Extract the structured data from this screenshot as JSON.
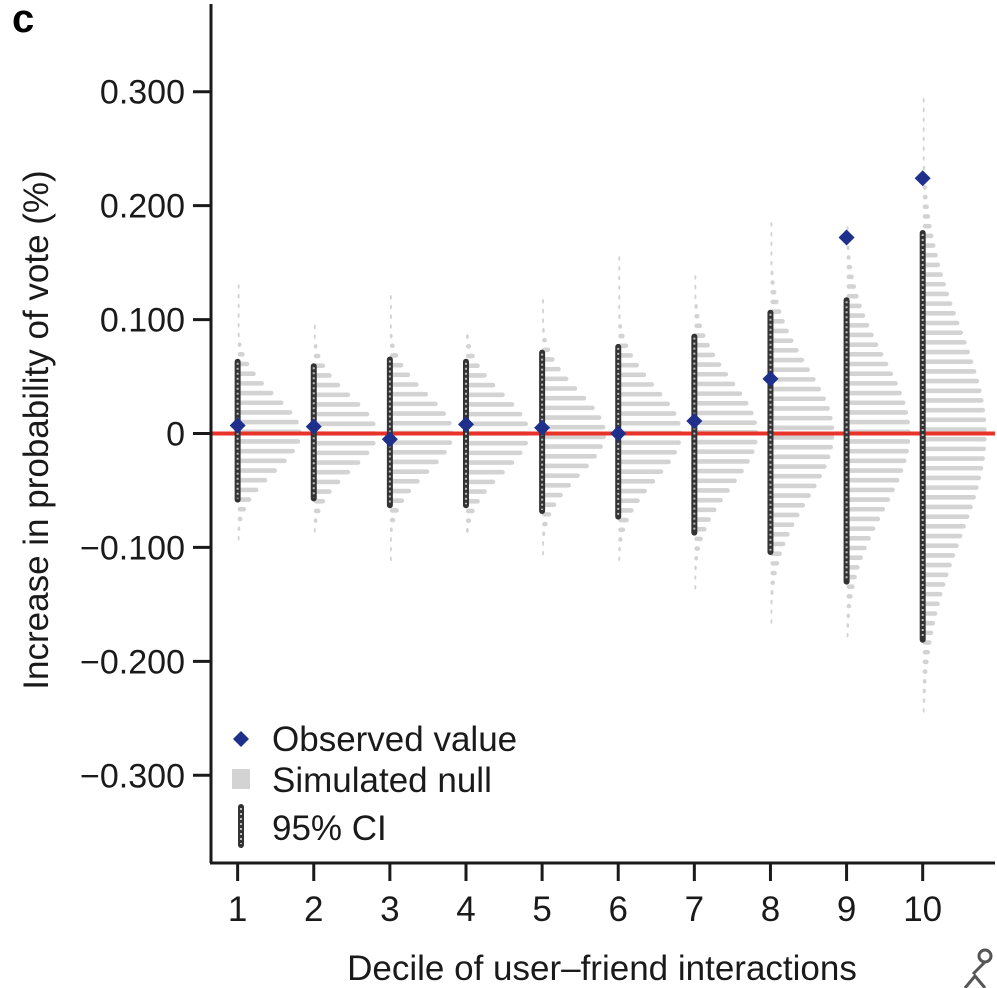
{
  "panel_label": "c",
  "chart_data": {
    "type": "scatter",
    "title": "",
    "xlabel": "Decile of user–friend interactions",
    "ylabel": "Increase in probability of vote (%)",
    "categories": [
      "1",
      "2",
      "3",
      "4",
      "5",
      "6",
      "7",
      "8",
      "9",
      "10"
    ],
    "xlim": [
      0.65,
      10.95
    ],
    "ylim": [
      -0.377,
      0.377
    ],
    "y_ticks": [
      0.3,
      0.2,
      0.1,
      0,
      -0.1,
      -0.2,
      -0.3
    ],
    "y_tick_labels": [
      "0.300",
      "0.200",
      "0.100",
      "0",
      "−0.100",
      "−0.200",
      "−0.300"
    ],
    "reference_line": {
      "y": 0,
      "color": "#e8332a"
    },
    "series": [
      {
        "name": "Observed value",
        "type": "scatter",
        "marker": "diamond",
        "color": "#1f2f8c",
        "values": [
          0.007,
          0.006,
          -0.005,
          0.008,
          0.005,
          0.0,
          0.011,
          0.048,
          0.172,
          0.224
        ]
      },
      {
        "name": "Simulated null",
        "type": "histogram-dots",
        "color": "#d3d3d3",
        "min": [
          -0.092,
          -0.085,
          -0.11,
          -0.085,
          -0.105,
          -0.11,
          -0.135,
          -0.165,
          -0.177,
          -0.243
        ],
        "max": [
          0.131,
          0.094,
          0.124,
          0.089,
          0.123,
          0.154,
          0.142,
          0.184,
          0.184,
          0.293
        ],
        "sd": [
          0.033,
          0.032,
          0.034,
          0.034,
          0.036,
          0.04,
          0.046,
          0.057,
          0.066,
          0.092
        ]
      },
      {
        "name": "95% CI",
        "type": "errorbar",
        "color": "#333333",
        "lower": [
          -0.058,
          -0.057,
          -0.063,
          -0.063,
          -0.068,
          -0.073,
          -0.087,
          -0.104,
          -0.13,
          -0.181
        ],
        "upper": [
          0.063,
          0.059,
          0.065,
          0.063,
          0.071,
          0.076,
          0.085,
          0.106,
          0.117,
          0.176
        ]
      }
    ],
    "legend": {
      "position": "bottom-left",
      "entries": [
        "Observed value",
        "Simulated null",
        "95% CI"
      ]
    },
    "grid": false
  }
}
